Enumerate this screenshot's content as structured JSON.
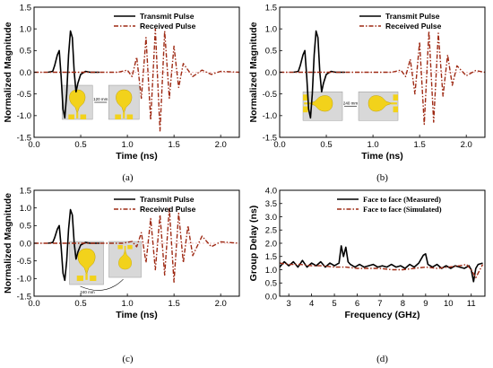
{
  "chart_data": [
    {
      "id": "a",
      "type": "line",
      "caption": "(a)",
      "xlabel": "Time (ns)",
      "ylabel": "Normalized Magnitude",
      "xlim": [
        0.0,
        2.2
      ],
      "ylim": [
        -1.5,
        1.5
      ],
      "xticks": [
        "0.0",
        "0.5",
        "1.0",
        "1.5",
        "2.0"
      ],
      "yticks": [
        "-1.5",
        "-1.0",
        "-0.5",
        "0.0",
        "0.5",
        "1.0",
        "1.5"
      ],
      "legend_position": "top-right",
      "series": [
        {
          "name": "Transmit Pulse",
          "color": "#000000",
          "style": "solid",
          "x": [
            0.15,
            0.2,
            0.22,
            0.25,
            0.27,
            0.29,
            0.31,
            0.33,
            0.35,
            0.37,
            0.39,
            0.41,
            0.43,
            0.45,
            0.47,
            0.5,
            0.55,
            0.6,
            0.7
          ],
          "y": [
            0.0,
            0.02,
            0.15,
            0.4,
            0.5,
            -0.1,
            -0.85,
            -1.05,
            -0.5,
            0.4,
            0.95,
            0.8,
            0.0,
            -0.45,
            -0.25,
            -0.05,
            0.02,
            0.0,
            0.0
          ]
        },
        {
          "name": "Received Pulse",
          "color": "#9e2a14",
          "style": "dashdot",
          "x": [
            0.0,
            0.9,
            1.0,
            1.05,
            1.1,
            1.15,
            1.2,
            1.25,
            1.3,
            1.35,
            1.4,
            1.45,
            1.5,
            1.55,
            1.6,
            1.7,
            1.8,
            1.9,
            2.0,
            2.2
          ],
          "y": [
            0.0,
            0.0,
            0.05,
            -0.1,
            0.35,
            -0.6,
            0.8,
            -1.1,
            1.0,
            -1.35,
            0.95,
            -0.6,
            0.6,
            -0.35,
            0.2,
            -0.1,
            0.05,
            -0.05,
            0.02,
            0.0
          ]
        }
      ],
      "inset": {
        "distance_label": "120 mm"
      }
    },
    {
      "id": "b",
      "type": "line",
      "caption": "(b)",
      "xlabel": "Time (ns)",
      "ylabel": "Normalized Magnitude",
      "xlim": [
        0.0,
        2.2
      ],
      "ylim": [
        -1.5,
        1.5
      ],
      "xticks": [
        "0.0",
        "0.5",
        "1.0",
        "1.5",
        "2.0"
      ],
      "yticks": [
        "-1.5",
        "-1.0",
        "-0.5",
        "0.0",
        "0.5",
        "1.0",
        "1.5"
      ],
      "legend_position": "top-right",
      "series": [
        {
          "name": "Transmit Pulse",
          "color": "#000000",
          "style": "solid",
          "x": [
            0.15,
            0.2,
            0.22,
            0.25,
            0.27,
            0.29,
            0.31,
            0.33,
            0.35,
            0.37,
            0.39,
            0.41,
            0.43,
            0.45,
            0.47,
            0.5,
            0.55,
            0.6,
            0.7
          ],
          "y": [
            0.0,
            0.02,
            0.15,
            0.4,
            0.5,
            -0.1,
            -0.85,
            -1.05,
            -0.5,
            0.4,
            0.95,
            0.8,
            0.0,
            -0.45,
            -0.25,
            -0.05,
            0.02,
            0.0,
            0.0
          ]
        },
        {
          "name": "Received Pulse",
          "color": "#9e2a14",
          "style": "dashdot",
          "x": [
            0.0,
            1.2,
            1.3,
            1.35,
            1.4,
            1.45,
            1.5,
            1.55,
            1.6,
            1.65,
            1.7,
            1.75,
            1.8,
            1.85,
            1.9,
            2.0,
            2.1,
            2.2
          ],
          "y": [
            0.0,
            0.0,
            0.05,
            -0.1,
            0.3,
            -0.5,
            0.7,
            -1.2,
            0.95,
            -1.15,
            0.9,
            -0.55,
            0.4,
            -0.3,
            0.15,
            -0.08,
            0.04,
            0.0
          ]
        }
      ],
      "inset": {
        "distance_label": "240 mm"
      }
    },
    {
      "id": "c",
      "type": "line",
      "caption": "(c)",
      "xlabel": "Time (ns)",
      "ylabel": "Normalized Magnitude",
      "xlim": [
        0.0,
        2.2
      ],
      "ylim": [
        -1.5,
        1.5
      ],
      "xticks": [
        "0.0",
        "0.5",
        "1.0",
        "1.5",
        "2.0"
      ],
      "yticks": [
        "-1.5",
        "-1.0",
        "-0.5",
        "0.0",
        "0.5",
        "1.0",
        "1.5"
      ],
      "legend_position": "top-right",
      "series": [
        {
          "name": "Transmit Pulse",
          "color": "#000000",
          "style": "solid",
          "x": [
            0.15,
            0.2,
            0.22,
            0.25,
            0.27,
            0.29,
            0.31,
            0.33,
            0.35,
            0.37,
            0.39,
            0.41,
            0.43,
            0.45,
            0.47,
            0.5,
            0.55,
            0.6,
            0.7
          ],
          "y": [
            0.0,
            0.02,
            0.15,
            0.4,
            0.5,
            -0.1,
            -0.85,
            -1.05,
            -0.5,
            0.4,
            0.95,
            0.8,
            0.0,
            -0.45,
            -0.25,
            -0.05,
            0.02,
            0.0,
            0.0
          ]
        },
        {
          "name": "Received Pulse",
          "color": "#9e2a14",
          "style": "dashdot",
          "x": [
            0.0,
            0.95,
            1.05,
            1.1,
            1.15,
            1.2,
            1.25,
            1.3,
            1.35,
            1.4,
            1.45,
            1.5,
            1.55,
            1.6,
            1.65,
            1.7,
            1.8,
            1.9,
            2.0,
            2.2
          ],
          "y": [
            0.0,
            0.0,
            0.05,
            -0.1,
            0.3,
            -0.55,
            0.7,
            -0.75,
            0.8,
            -0.9,
            1.0,
            -1.1,
            0.85,
            -0.55,
            0.5,
            -0.35,
            0.2,
            -0.1,
            0.04,
            0.0
          ]
        }
      ],
      "inset": {
        "distance_label": "240 mm"
      }
    },
    {
      "id": "d",
      "type": "line",
      "caption": "(d)",
      "xlabel": "Frequency (GHz)",
      "ylabel": "Group Delay (ns)",
      "xlim": [
        2.6,
        11.6
      ],
      "ylim": [
        0.0,
        4.0
      ],
      "xticks": [
        "3",
        "4",
        "5",
        "6",
        "7",
        "8",
        "9",
        "10",
        "11"
      ],
      "yticks": [
        "0.0",
        "0.5",
        "1.0",
        "1.5",
        "2.0",
        "2.5",
        "3.0",
        "3.5",
        "4.0"
      ],
      "legend_position": "top-right",
      "series": [
        {
          "name": "Face to face (Measured)",
          "color": "#000000",
          "style": "solid",
          "x": [
            2.6,
            2.8,
            3.0,
            3.2,
            3.4,
            3.6,
            3.8,
            4.0,
            4.2,
            4.4,
            4.6,
            4.8,
            5.0,
            5.2,
            5.3,
            5.4,
            5.5,
            5.6,
            5.7,
            5.9,
            6.1,
            6.3,
            6.5,
            6.7,
            6.9,
            7.1,
            7.3,
            7.5,
            7.7,
            7.9,
            8.1,
            8.3,
            8.5,
            8.7,
            8.9,
            9.0,
            9.1,
            9.3,
            9.5,
            9.7,
            9.9,
            10.1,
            10.3,
            10.5,
            10.7,
            10.9,
            11.0,
            11.1,
            11.2,
            11.3,
            11.5
          ],
          "y": [
            1.1,
            1.3,
            1.15,
            1.3,
            1.1,
            1.35,
            1.1,
            1.25,
            1.15,
            1.3,
            1.1,
            1.25,
            1.15,
            1.25,
            1.9,
            1.5,
            1.85,
            1.3,
            1.2,
            1.1,
            1.2,
            1.1,
            1.15,
            1.2,
            1.1,
            1.15,
            1.1,
            1.2,
            1.1,
            1.15,
            1.05,
            1.2,
            1.1,
            1.25,
            1.55,
            1.6,
            1.2,
            1.1,
            1.2,
            1.05,
            1.15,
            1.05,
            1.15,
            1.1,
            1.05,
            1.15,
            1.0,
            0.55,
            1.05,
            1.2,
            1.25
          ]
        },
        {
          "name": "Face to face (Simulated)",
          "color": "#9e2a14",
          "style": "dashdot",
          "x": [
            2.6,
            3.0,
            3.5,
            4.0,
            4.5,
            5.0,
            5.5,
            6.0,
            6.5,
            7.0,
            7.5,
            8.0,
            8.5,
            9.0,
            9.5,
            10.0,
            10.5,
            10.8,
            11.0,
            11.2,
            11.5
          ],
          "y": [
            1.25,
            1.2,
            1.2,
            1.15,
            1.15,
            1.1,
            1.1,
            1.05,
            1.05,
            1.05,
            1.0,
            1.0,
            1.05,
            1.1,
            1.05,
            1.1,
            1.15,
            1.2,
            1.0,
            0.7,
            1.2
          ]
        }
      ]
    }
  ]
}
